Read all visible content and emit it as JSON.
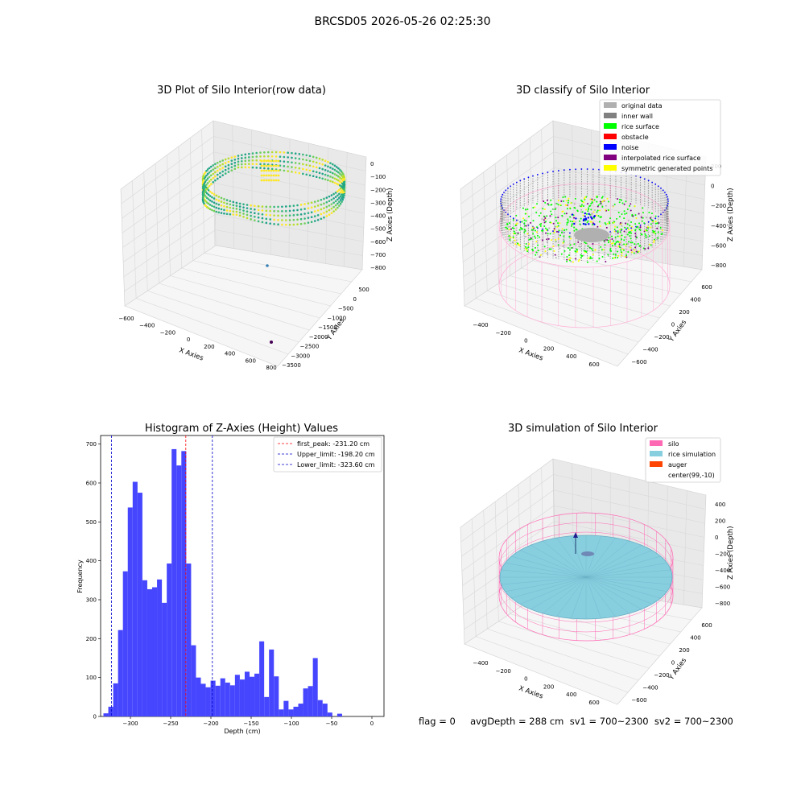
{
  "suptitle": "BRCSD05 2026-05-26 02:25:30",
  "colors": {
    "hist_bar": "#4646ff",
    "first_peak_line": "#ff0000",
    "limit_line": "#0000cc",
    "silo_pink": "#ff69b4",
    "rice_blue": "#87cedf",
    "auger": "#ff4500",
    "grey_data": "#b0b0b0",
    "inner_wall": "#808080",
    "rice_surface": "#00ff00",
    "obstacle": "#ff0000",
    "noise": "#0000ff",
    "interp": "#800080",
    "symmetric": "#ffff00"
  },
  "chart_data": [
    {
      "type": "scatter",
      "projection": "3d",
      "title": "3D Plot of Silo Interior(row data)",
      "xlabel": "X Axies",
      "ylabel": "Y Axies",
      "zlabel": "Z Axies (Depth)",
      "x_ticks": [
        "−600",
        "−400",
        "−200",
        "0",
        "200",
        "400",
        "600",
        "800"
      ],
      "y_ticks": [
        "500",
        "0",
        "−500",
        "−1000",
        "−1500",
        "−2000",
        "−2500",
        "−3000",
        "−3500"
      ],
      "z_ticks": [
        "0",
        "−100",
        "−200",
        "−300",
        "−400",
        "−500",
        "−600",
        "−700",
        "−800"
      ],
      "colormap": "viridis"
    },
    {
      "type": "scatter",
      "projection": "3d",
      "title": "3D classify of Silo Interior",
      "xlabel": "X Axies",
      "ylabel": "Y Axies",
      "zlabel": "Z Axies (Depth)",
      "x_ticks": [
        "−400",
        "−200",
        "0",
        "200",
        "400",
        "600"
      ],
      "y_ticks": [
        "600",
        "400",
        "200",
        "0",
        "−200",
        "−400",
        "−600"
      ],
      "z_ticks": [
        "200",
        "0",
        "−200",
        "−400",
        "−600",
        "−800"
      ],
      "legend": [
        {
          "label": "original data",
          "color": "#b0b0b0"
        },
        {
          "label": "inner wall",
          "color": "#808080"
        },
        {
          "label": "rice surface",
          "color": "#00ff00"
        },
        {
          "label": "obstacle",
          "color": "#ff0000"
        },
        {
          "label": "noise",
          "color": "#0000ff"
        },
        {
          "label": "interpolated rice surface",
          "color": "#800080"
        },
        {
          "label": "symmetric generated points",
          "color": "#ffff00"
        }
      ],
      "legend_position": "top-right"
    },
    {
      "type": "bar",
      "title": "Histogram of Z-Axies (Height) Values",
      "xlabel": "Depth (cm)",
      "ylabel": "Frequency",
      "xlim": [
        -337,
        15
      ],
      "ylim": [
        0,
        722
      ],
      "x_ticks": [
        -300,
        -250,
        -200,
        -150,
        -100,
        -50,
        0
      ],
      "y_ticks": [
        0,
        100,
        200,
        300,
        400,
        500,
        600,
        700
      ],
      "bin_start": -333.5,
      "bin_width": 6.05,
      "values": [
        8,
        25,
        85,
        222,
        373,
        537,
        603,
        575,
        350,
        327,
        332,
        352,
        292,
        393,
        687,
        645,
        682,
        393,
        183,
        100,
        84,
        75,
        92,
        79,
        98,
        87,
        80,
        107,
        95,
        115,
        102,
        110,
        193,
        50,
        172,
        103,
        18,
        40,
        18,
        25,
        33,
        72,
        78,
        150,
        42,
        33,
        10,
        0,
        7
      ],
      "vlines": [
        {
          "x": -231.2,
          "label": "first_peak: -231.20 cm",
          "color": "#ff0000"
        },
        {
          "x": -198.2,
          "label": "Upper_limit: -198.20 cm",
          "color": "#0000cc"
        },
        {
          "x": -323.6,
          "label": "Lower_limit: -323.60 cm",
          "color": "#0000cc"
        }
      ],
      "legend_position": "top-right"
    },
    {
      "type": "scatter",
      "projection": "3d",
      "title": "3D simulation of Silo Interior",
      "xlabel": "X Axies",
      "ylabel": "Y Axies",
      "zlabel": "Z Axies (Depth)",
      "x_ticks": [
        "−400",
        "−200",
        "0",
        "200",
        "400",
        "600"
      ],
      "y_ticks": [
        "600",
        "400",
        "200",
        "0",
        "−200",
        "−400",
        "−600"
      ],
      "z_ticks": [
        "400",
        "200",
        "0",
        "−200",
        "−400",
        "−600",
        "−800"
      ],
      "legend": [
        {
          "label": "silo",
          "color": "#ff69b4"
        },
        {
          "label": "rice simulation",
          "color": "#87cedf"
        },
        {
          "label": "auger",
          "color": "#ff4500"
        },
        {
          "label": "center(99,-10)",
          "color": ""
        }
      ],
      "legend_position": "top-right"
    }
  ],
  "status_text": "flag = 0     avgDepth = 288 cm  sv1 = 700~2300  sv2 = 700~2300"
}
